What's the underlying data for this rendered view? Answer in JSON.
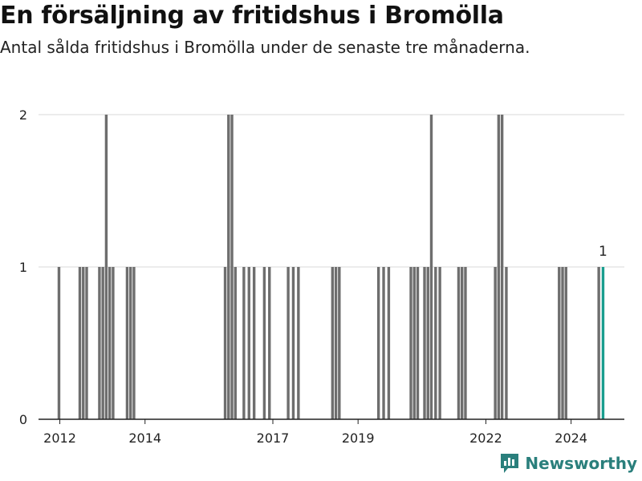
{
  "title": "En försäljning av fritidshus i Bromölla",
  "subtitle": "Antal sålda fritidshus i Bromölla under de senaste tre månaderna.",
  "brand": "Newsworthy",
  "colors": {
    "bar": "#6e6e6e",
    "highlight": "#1a9e8f",
    "grid": "#d9d9d9",
    "axis": "#222222",
    "brand": "#2a7f7c"
  },
  "chart_data": {
    "type": "bar",
    "xlabel": "",
    "ylabel": "",
    "ylim": [
      0,
      2
    ],
    "yticks": [
      0,
      1,
      2
    ],
    "xlim": [
      2011.5,
      2025.25
    ],
    "xticks": [
      "2012",
      "2014",
      "2017",
      "2019",
      "2022",
      "2024"
    ],
    "grid": true,
    "x": [
      2011.98,
      2012.47,
      2012.55,
      2012.63,
      2012.93,
      2013.01,
      2013.09,
      2013.17,
      2013.25,
      2013.58,
      2013.66,
      2013.74,
      2015.88,
      2015.96,
      2016.04,
      2016.12,
      2016.32,
      2016.44,
      2016.56,
      2016.8,
      2016.92,
      2017.36,
      2017.48,
      2017.6,
      2018.4,
      2018.48,
      2018.56,
      2019.48,
      2019.6,
      2019.72,
      2020.24,
      2020.32,
      2020.4,
      2020.56,
      2020.64,
      2020.72,
      2020.82,
      2020.92,
      2021.36,
      2021.44,
      2021.52,
      2022.22,
      2022.3,
      2022.38,
      2022.48,
      2023.72,
      2023.8,
      2023.88,
      2024.65,
      2024.75
    ],
    "values": [
      1,
      1,
      1,
      1,
      1,
      1,
      2,
      1,
      1,
      1,
      1,
      1,
      1,
      2,
      2,
      1,
      1,
      1,
      1,
      1,
      1,
      1,
      1,
      1,
      1,
      1,
      1,
      1,
      1,
      1,
      1,
      1,
      1,
      1,
      1,
      2,
      1,
      1,
      1,
      1,
      1,
      1,
      2,
      2,
      1,
      1,
      1,
      1,
      1,
      1
    ],
    "highlight_index": 49,
    "annotations": [
      {
        "text": "1"
      }
    ]
  }
}
